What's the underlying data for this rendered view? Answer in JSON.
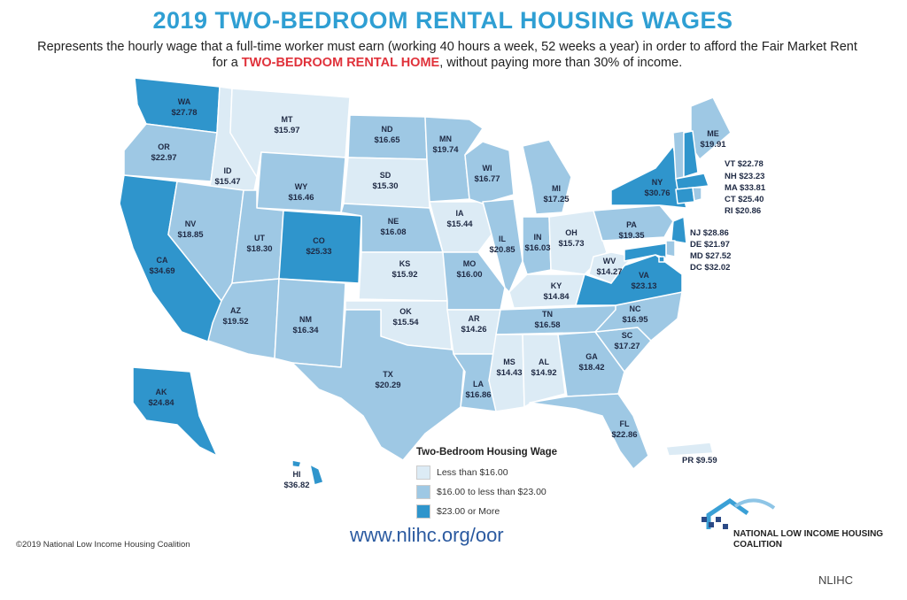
{
  "title": "2019 TWO-BEDROOM RENTAL HOUSING WAGES",
  "subtitle_part1": "Represents the hourly wage that a full-time worker must earn (working 40 hours a week, 52 weeks a year) in order to afford the Fair Market Rent for a ",
  "subtitle_highlight": "TWO-BEDROOM RENTAL HOME",
  "subtitle_part2": ", without paying more than 30% of income.",
  "colors": {
    "low": "#dcebf5",
    "mid": "#9ec8e4",
    "high": "#2f95cc",
    "title": "#2f9fd3",
    "highlight": "#e0323b"
  },
  "states": [
    {
      "abbr": "WA",
      "wage": "$27.78",
      "tier": "high"
    },
    {
      "abbr": "OR",
      "wage": "$22.97",
      "tier": "mid"
    },
    {
      "abbr": "CA",
      "wage": "$34.69",
      "tier": "high"
    },
    {
      "abbr": "ID",
      "wage": "$15.47",
      "tier": "low"
    },
    {
      "abbr": "NV",
      "wage": "$18.85",
      "tier": "mid"
    },
    {
      "abbr": "MT",
      "wage": "$15.97",
      "tier": "low"
    },
    {
      "abbr": "WY",
      "wage": "$16.46",
      "tier": "mid"
    },
    {
      "abbr": "UT",
      "wage": "$18.30",
      "tier": "mid"
    },
    {
      "abbr": "CO",
      "wage": "$25.33",
      "tier": "high"
    },
    {
      "abbr": "AZ",
      "wage": "$19.52",
      "tier": "mid"
    },
    {
      "abbr": "NM",
      "wage": "$16.34",
      "tier": "mid"
    },
    {
      "abbr": "ND",
      "wage": "$16.65",
      "tier": "mid"
    },
    {
      "abbr": "SD",
      "wage": "$15.30",
      "tier": "low"
    },
    {
      "abbr": "NE",
      "wage": "$16.08",
      "tier": "mid"
    },
    {
      "abbr": "KS",
      "wage": "$15.92",
      "tier": "low"
    },
    {
      "abbr": "OK",
      "wage": "$15.54",
      "tier": "low"
    },
    {
      "abbr": "TX",
      "wage": "$20.29",
      "tier": "mid"
    },
    {
      "abbr": "MN",
      "wage": "$19.74",
      "tier": "mid"
    },
    {
      "abbr": "IA",
      "wage": "$15.44",
      "tier": "low"
    },
    {
      "abbr": "MO",
      "wage": "$16.00",
      "tier": "mid"
    },
    {
      "abbr": "AR",
      "wage": "$14.26",
      "tier": "low"
    },
    {
      "abbr": "LA",
      "wage": "$16.86",
      "tier": "mid"
    },
    {
      "abbr": "WI",
      "wage": "$16.77",
      "tier": "mid"
    },
    {
      "abbr": "IL",
      "wage": "$20.85",
      "tier": "mid"
    },
    {
      "abbr": "MI",
      "wage": "$17.25",
      "tier": "mid"
    },
    {
      "abbr": "IN",
      "wage": "$16.03",
      "tier": "mid"
    },
    {
      "abbr": "OH",
      "wage": "$15.73",
      "tier": "low"
    },
    {
      "abbr": "KY",
      "wage": "$14.84",
      "tier": "low"
    },
    {
      "abbr": "TN",
      "wage": "$16.58",
      "tier": "mid"
    },
    {
      "abbr": "MS",
      "wage": "$14.43",
      "tier": "low"
    },
    {
      "abbr": "AL",
      "wage": "$14.92",
      "tier": "low"
    },
    {
      "abbr": "GA",
      "wage": "$18.42",
      "tier": "mid"
    },
    {
      "abbr": "FL",
      "wage": "$22.86",
      "tier": "mid"
    },
    {
      "abbr": "SC",
      "wage": "$17.27",
      "tier": "mid"
    },
    {
      "abbr": "NC",
      "wage": "$16.95",
      "tier": "mid"
    },
    {
      "abbr": "VA",
      "wage": "$23.13",
      "tier": "high"
    },
    {
      "abbr": "WV",
      "wage": "$14.27",
      "tier": "low"
    },
    {
      "abbr": "PA",
      "wage": "$19.35",
      "tier": "mid"
    },
    {
      "abbr": "NY",
      "wage": "$30.76",
      "tier": "high"
    },
    {
      "abbr": "ME",
      "wage": "$19.91",
      "tier": "mid"
    },
    {
      "abbr": "AK",
      "wage": "$24.84",
      "tier": "high"
    },
    {
      "abbr": "HI",
      "wage": "$36.82",
      "tier": "high"
    }
  ],
  "side_labels": [
    {
      "text": "VT $22.78",
      "state": "VT",
      "tier": "mid"
    },
    {
      "text": "NH $23.23",
      "state": "NH",
      "tier": "high"
    },
    {
      "text": "MA $33.81",
      "state": "MA",
      "tier": "high"
    },
    {
      "text": "CT $25.40",
      "state": "CT",
      "tier": "high"
    },
    {
      "text": "RI $20.86",
      "state": "RI",
      "tier": "mid"
    },
    {
      "text": "NJ $28.86",
      "state": "NJ",
      "tier": "high"
    },
    {
      "text": "DE $21.97",
      "state": "DE",
      "tier": "mid"
    },
    {
      "text": "MD $27.52",
      "state": "MD",
      "tier": "high"
    },
    {
      "text": "DC $32.02",
      "state": "DC",
      "tier": "high"
    },
    {
      "text": "PR $9.59",
      "state": "PR",
      "tier": "low"
    }
  ],
  "legend": {
    "title": "Two-Bedroom Housing Wage",
    "items": [
      {
        "label": "Less than $16.00",
        "tier": "low"
      },
      {
        "label": "$16.00 to less than $23.00",
        "tier": "mid"
      },
      {
        "label": "$23.00 or More",
        "tier": "high"
      }
    ]
  },
  "url": "www.nlihc.org/oor",
  "copyright": "©2019 National Low Income Housing Coalition",
  "org_name": "NATIONAL LOW INCOME HOUSING COALITION",
  "credit": "NLIHC"
}
